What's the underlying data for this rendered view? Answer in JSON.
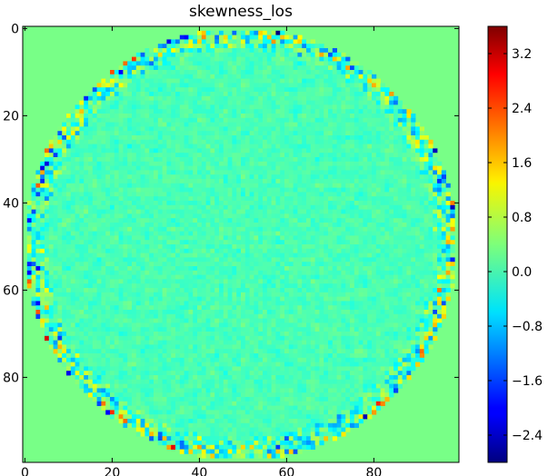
{
  "chart_data": {
    "type": "heatmap",
    "title": "skewness_los",
    "xlabel": "",
    "ylabel": "",
    "grid_size": [
      100,
      100
    ],
    "xlim": [
      0,
      99
    ],
    "ylim": [
      99,
      0
    ],
    "x_ticks": [
      "0",
      "20",
      "40",
      "60",
      "80"
    ],
    "x_tick_values": [
      0,
      20,
      40,
      60,
      80
    ],
    "y_ticks": [
      "0",
      "20",
      "40",
      "60",
      "80"
    ],
    "y_tick_values": [
      0,
      20,
      40,
      60,
      80
    ],
    "colormap": "jet",
    "background_value": 0.35,
    "disk": {
      "center": [
        49.5,
        49.5
      ],
      "radius": 49.5
    },
    "colorbar": {
      "range": [
        -2.8,
        3.6
      ],
      "ticks": [
        "3.2",
        "2.4",
        "1.6",
        "0.8",
        "0.0",
        "−0.8",
        "−1.6",
        "−2.4"
      ],
      "tick_values": [
        3.2,
        2.4,
        1.6,
        0.8,
        0.0,
        -0.8,
        -1.6,
        -2.4
      ]
    }
  }
}
